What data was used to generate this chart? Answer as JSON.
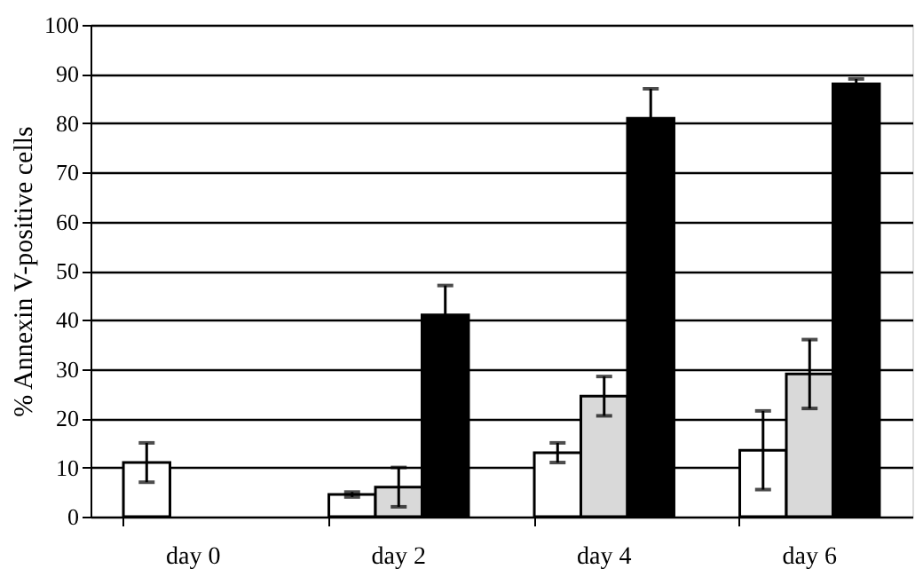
{
  "chart_data": {
    "type": "bar",
    "ylabel": "% Annexin V-positive cells",
    "categories": [
      "day 0",
      "day 2",
      "day 4",
      "day 6"
    ],
    "series": [
      {
        "color": "#ffffff",
        "values": [
          11,
          4.5,
          13,
          13.5
        ],
        "errors": [
          4,
          0.5,
          2,
          8
        ]
      },
      {
        "color": "#d9d9d9",
        "values": [
          null,
          6,
          24.5,
          29
        ],
        "errors": [
          null,
          4,
          4,
          7
        ]
      },
      {
        "color": "#000000",
        "values": [
          null,
          41,
          81,
          88
        ],
        "errors": [
          null,
          6,
          6,
          1
        ]
      }
    ],
    "ylim": [
      0,
      100
    ],
    "yticks": [
      0,
      10,
      20,
      30,
      40,
      50,
      60,
      70,
      80,
      90,
      100
    ],
    "grid": "y"
  }
}
